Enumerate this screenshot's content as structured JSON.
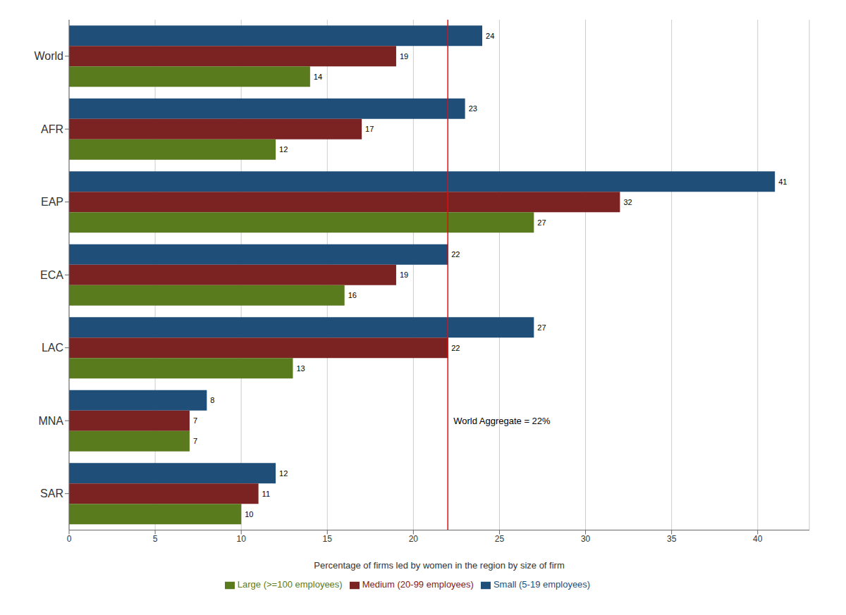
{
  "chart_data": {
    "type": "bar",
    "orientation": "horizontal",
    "categories": [
      "World",
      "AFR",
      "EAP",
      "ECA",
      "LAC",
      "MNA",
      "SAR"
    ],
    "series": [
      {
        "name": "Small (5-19 employees)",
        "color": "#1F4E79",
        "values": [
          24,
          23,
          41,
          22,
          27,
          8,
          12
        ]
      },
      {
        "name": "Medium (20-99 employees)",
        "color": "#7B2323",
        "values": [
          19,
          17,
          32,
          19,
          22,
          7,
          11
        ]
      },
      {
        "name": "Large (>=100 employees)",
        "color": "#5A7A1E",
        "values": [
          14,
          12,
          27,
          16,
          13,
          7,
          10
        ]
      }
    ],
    "x_label": "Percentage of firms led by women in the region by size of firm",
    "xlim": [
      0,
      43
    ],
    "xticks": [
      0,
      5,
      10,
      15,
      20,
      25,
      30,
      35,
      40
    ],
    "grid": true,
    "legend": "bottom",
    "data_labels": true,
    "annotations": [
      {
        "x": 22,
        "label": "World Aggregate = 22%",
        "color": "red"
      }
    ]
  }
}
